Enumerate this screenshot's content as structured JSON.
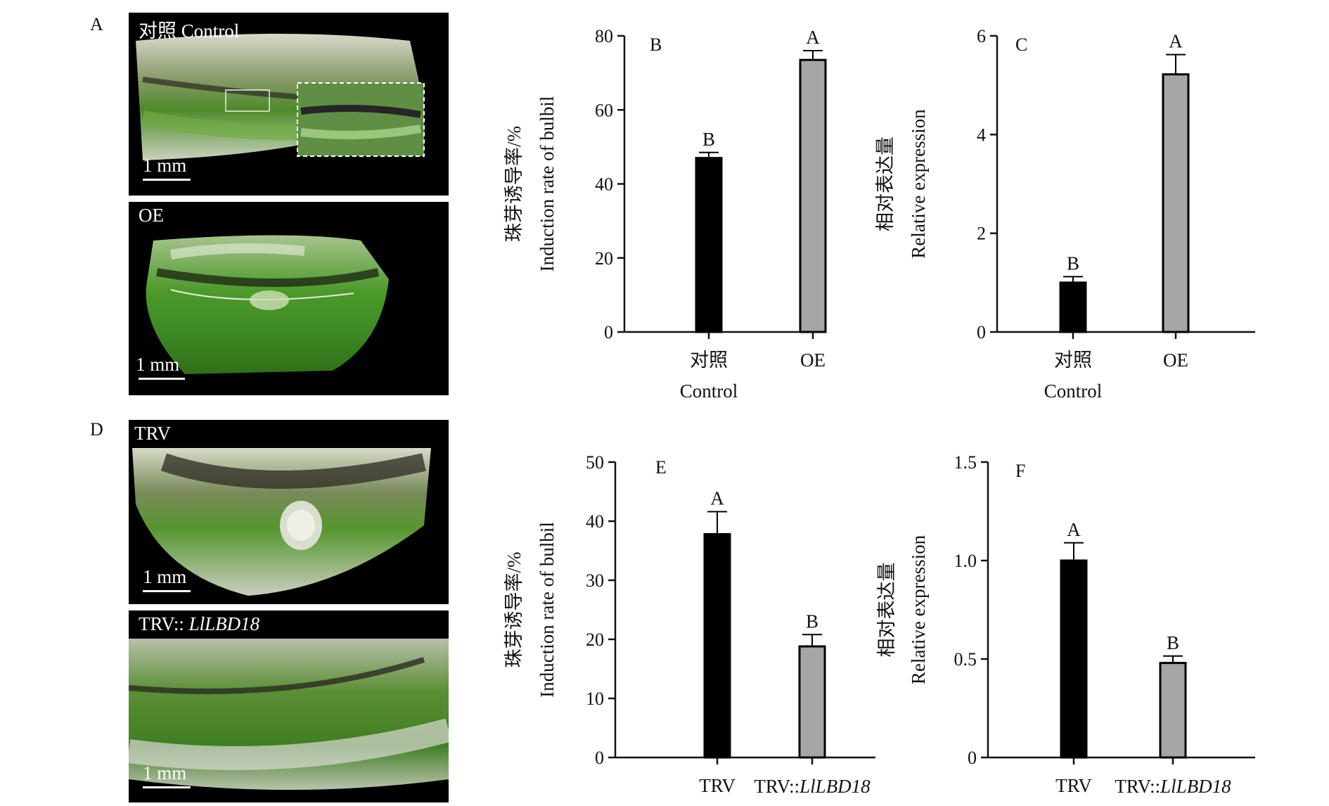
{
  "panels": {
    "A": "A",
    "D": "D"
  },
  "photos": {
    "control": {
      "caption": "对照 Control",
      "scale": "1 mm"
    },
    "oe": {
      "caption": "OE",
      "scale": "1 mm"
    },
    "trv": {
      "caption": "TRV",
      "scale": "1 mm"
    },
    "trv_lbd": {
      "caption_prefix": "TRV:: ",
      "caption_gene": "LlLBD18",
      "scale": "1 mm"
    }
  },
  "colors": {
    "bar_first": "#000000",
    "bar_second": "#a6a6a6",
    "axis": "#111111"
  },
  "chart_data": [
    {
      "panel": "B",
      "type": "bar",
      "categories": [
        [
          "对照",
          "Control"
        ],
        [
          "OE"
        ]
      ],
      "values": [
        47,
        73.5
      ],
      "errors": [
        1.5,
        2.5
      ],
      "letters": [
        "B",
        "A"
      ],
      "ylabel": [
        "珠芽诱导率/%",
        "Induction rate of bulbil"
      ],
      "ylim": [
        0,
        80
      ],
      "yticks": [
        "0",
        "20",
        "40",
        "60",
        "80"
      ],
      "grid": false
    },
    {
      "panel": "C",
      "type": "bar",
      "categories": [
        [
          "对照",
          "Control"
        ],
        [
          "OE"
        ]
      ],
      "values": [
        1.0,
        5.22
      ],
      "errors": [
        0.12,
        0.4
      ],
      "letters": [
        "B",
        "A"
      ],
      "ylabel": [
        "相对表达量",
        "Relative expression"
      ],
      "ylim": [
        0,
        6
      ],
      "yticks": [
        "0",
        "2",
        "4",
        "6"
      ],
      "grid": false
    },
    {
      "panel": "E",
      "type": "bar",
      "categories": [
        [
          "TRV"
        ],
        [
          "TRV::",
          "LlLBD18"
        ]
      ],
      "values": [
        37.8,
        18.8
      ],
      "errors": [
        3.8,
        2.0
      ],
      "letters": [
        "A",
        "B"
      ],
      "ylabel": [
        "珠芽诱导率/%",
        "Induction rate of bulbil"
      ],
      "ylim": [
        0,
        50
      ],
      "yticks": [
        "0",
        "10",
        "20",
        "30",
        "40",
        "50"
      ],
      "grid": false
    },
    {
      "panel": "F",
      "type": "bar",
      "categories": [
        [
          "TRV"
        ],
        [
          "TRV::",
          "LlLBD18"
        ]
      ],
      "values": [
        1.0,
        0.48
      ],
      "errors": [
        0.09,
        0.035
      ],
      "letters": [
        "A",
        "B"
      ],
      "ylabel": [
        "相对表达量",
        "Relative expression"
      ],
      "ylim": [
        0,
        1.5
      ],
      "yticks": [
        "0",
        "0.5",
        "1.0",
        "1.5"
      ],
      "grid": false
    }
  ]
}
